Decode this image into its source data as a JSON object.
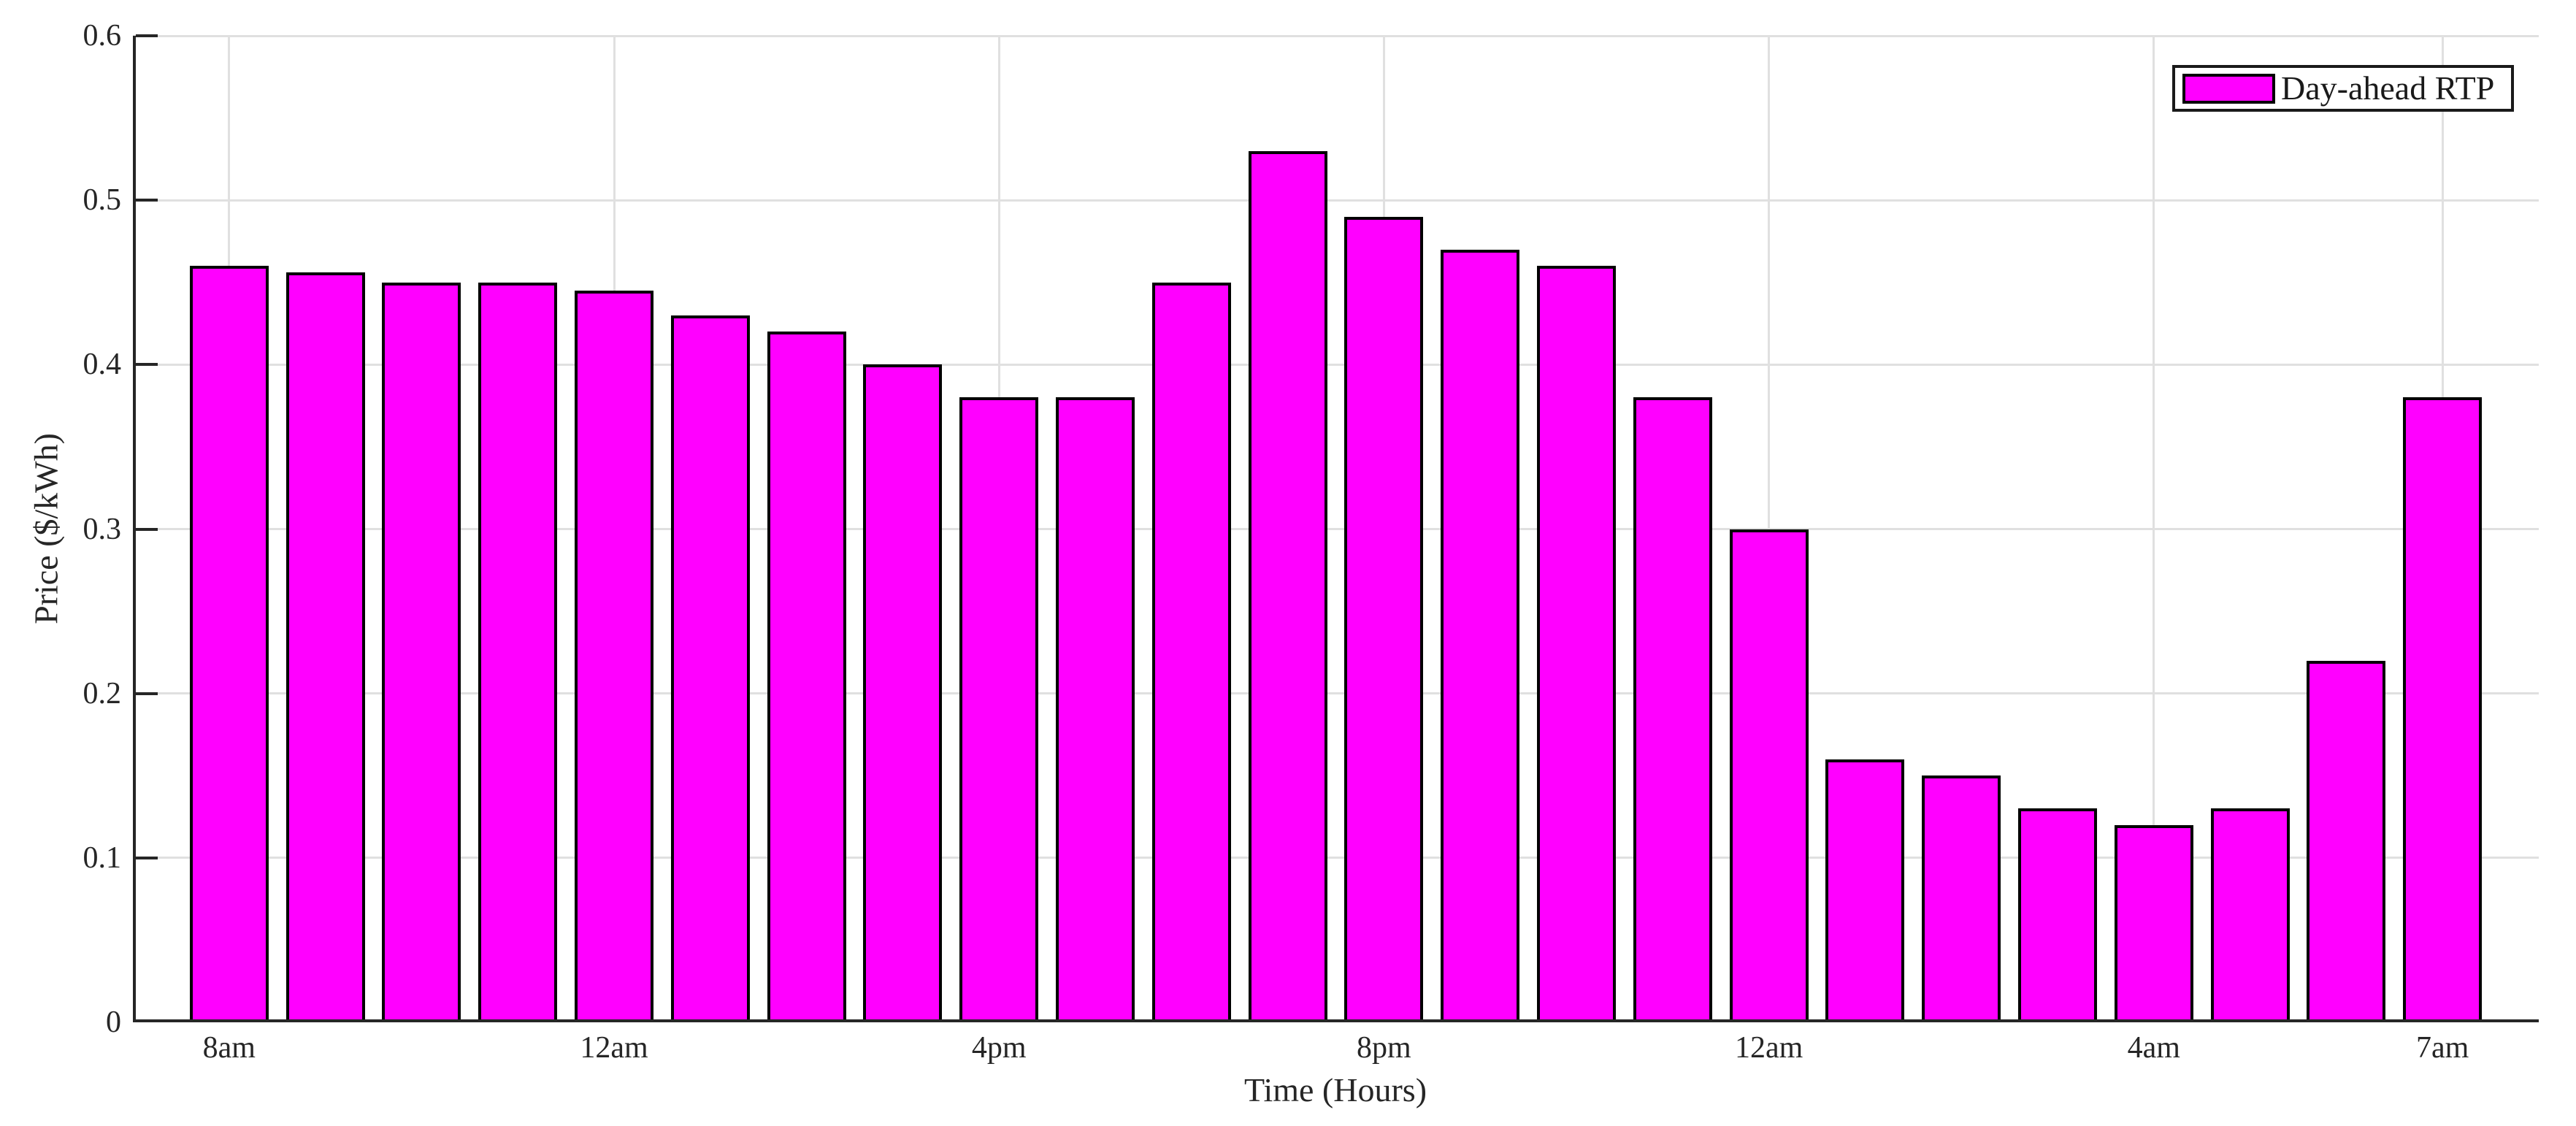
{
  "figure": {
    "background": "#ffffff"
  },
  "chart_data": {
    "type": "bar",
    "title": "",
    "xlabel": "Time (Hours)",
    "ylabel": "Price ($/kWh)",
    "ylim": [
      0,
      0.6
    ],
    "yticks": [
      0,
      0.1,
      0.2,
      0.3,
      0.4,
      0.5,
      0.6
    ],
    "ytick_labels": [
      "0",
      "0.1",
      "0.2",
      "0.3",
      "0.4",
      "0.5",
      "0.6"
    ],
    "xtick_labels": [
      "8am",
      "12am",
      "4pm",
      "8pm",
      "12am",
      "4am",
      "7am"
    ],
    "xtick_bar_indices": [
      0,
      4,
      8,
      12,
      16,
      20,
      23
    ],
    "num_bars": 24,
    "values": [
      0.46,
      0.456,
      0.45,
      0.45,
      0.445,
      0.43,
      0.42,
      0.4,
      0.38,
      0.38,
      0.45,
      0.53,
      0.49,
      0.47,
      0.46,
      0.38,
      0.3,
      0.16,
      0.15,
      0.13,
      0.12,
      0.13,
      0.22,
      0.38
    ],
    "series": [
      {
        "name": "Day-ahead RTP"
      }
    ],
    "legend": {
      "label": "Day-ahead RTP",
      "position": "top-right"
    },
    "grid": true,
    "colors": {
      "bar_fill": "#ff00ff",
      "bar_edge": "#000000",
      "axis": "#262626",
      "grid": "#e0e0e0",
      "text": "#262626"
    }
  }
}
